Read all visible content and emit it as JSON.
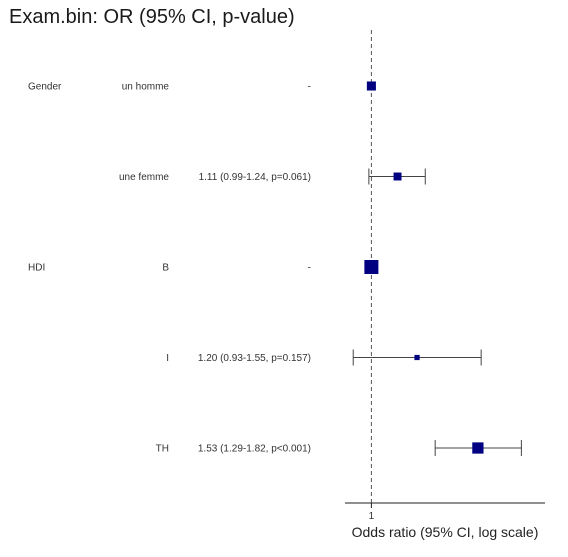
{
  "title": "Exam.bin: OR (95% CI, p-value)",
  "chart_data": {
    "type": "forest",
    "title": "Exam.bin: OR (95% CI, p-value)",
    "xlabel": "Odds ratio (95% CI, log scale)",
    "x_scale": "log",
    "xlim": [
      0.9,
      2.0
    ],
    "x_ticks": [
      {
        "value": 1,
        "label": "1"
      }
    ],
    "reference_line": 1,
    "rows": [
      {
        "variable": "Gender",
        "level": "un homme",
        "text": "-",
        "or": 1.0,
        "lower": null,
        "upper": null,
        "reference": true,
        "weight": 0.55
      },
      {
        "variable": "",
        "level": "une femme",
        "text": "1.11 (0.99-1.24, p=0.061)",
        "or": 1.11,
        "lower": 0.99,
        "upper": 1.24,
        "reference": false,
        "weight": 0.45
      },
      {
        "variable": "HDI",
        "level": "B",
        "text": "-",
        "or": 1.0,
        "lower": null,
        "upper": null,
        "reference": true,
        "weight": 1.0
      },
      {
        "variable": "",
        "level": "I",
        "text": "1.20 (0.93-1.55, p=0.157)",
        "or": 1.2,
        "lower": 0.93,
        "upper": 1.55,
        "reference": false,
        "weight": 0.2
      },
      {
        "variable": "",
        "level": "TH",
        "text": "1.53 (1.29-1.82, p<0.001)",
        "or": 1.53,
        "lower": 1.29,
        "upper": 1.82,
        "reference": false,
        "weight": 0.75
      }
    ],
    "marker_color": "#000080",
    "line_color": "#444444",
    "refline_color": "#555555"
  }
}
